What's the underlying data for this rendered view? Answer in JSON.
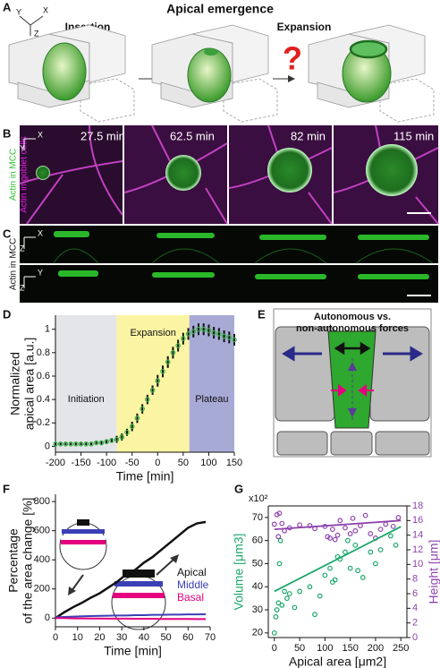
{
  "panel_labels": [
    "A",
    "B",
    "C",
    "D",
    "E",
    "F",
    "G"
  ],
  "panel_a": {
    "title": "Apical emergence",
    "steps": [
      "Insertion",
      "Expansion"
    ],
    "question": "?",
    "axes": [
      "Y",
      "X",
      "Z"
    ]
  },
  "panel_b": {
    "times": [
      "27.5 min",
      "62.5 min",
      "82 min",
      "115 min"
    ],
    "channels": [
      "Actin in MCC",
      "Actin in goblet cells"
    ],
    "axes": [
      "X",
      "Y"
    ]
  },
  "panel_c": {
    "channel": "Actin in MCC",
    "axes_top": [
      "X",
      "Z"
    ],
    "axes_bottom": [
      "Y",
      "Z"
    ]
  },
  "panel_e": {
    "title": [
      "Autonomous vs.",
      "non-autonomous forces"
    ]
  },
  "chart_data": [
    {
      "type": "line",
      "xlabel": "Time [min]",
      "ylabel": [
        "Normalized",
        "apical area [a.u.]"
      ],
      "x": [
        -200,
        -190,
        -180,
        -170,
        -160,
        -150,
        -140,
        -130,
        -120,
        -110,
        -100,
        -90,
        -80,
        -70,
        -60,
        -50,
        -40,
        -30,
        -20,
        -10,
        0,
        10,
        20,
        30,
        40,
        50,
        60,
        70,
        80,
        90,
        100,
        110,
        120,
        130,
        140,
        150
      ],
      "series": [
        {
          "color": "#3cb44b",
          "values": [
            0.02,
            0.02,
            0.02,
            0.02,
            0.02,
            0.02,
            0.02,
            0.02,
            0.03,
            0.03,
            0.04,
            0.05,
            0.06,
            0.08,
            0.12,
            0.17,
            0.24,
            0.32,
            0.4,
            0.48,
            0.56,
            0.64,
            0.72,
            0.8,
            0.86,
            0.92,
            0.96,
            0.98,
            1.0,
            1.0,
            0.99,
            0.97,
            0.96,
            0.94,
            0.93,
            0.91
          ],
          "errors": [
            0.01,
            0.01,
            0.01,
            0.01,
            0.01,
            0.01,
            0.01,
            0.01,
            0.01,
            0.02,
            0.02,
            0.02,
            0.03,
            0.03,
            0.03,
            0.04,
            0.04,
            0.04,
            0.04,
            0.04,
            0.05,
            0.05,
            0.05,
            0.05,
            0.05,
            0.05,
            0.05,
            0.05,
            0.05,
            0.05,
            0.05,
            0.05,
            0.05,
            0.05,
            0.05,
            0.05
          ]
        }
      ],
      "xlim": [
        -200,
        150
      ],
      "ylim": [
        -0.05,
        1.12
      ],
      "xticks": [
        -200,
        -150,
        -100,
        -50,
        0,
        50,
        100,
        150
      ],
      "yticks": [
        0,
        0.2,
        0.4,
        0.6,
        0.8,
        1
      ],
      "regions": [
        {
          "name": "Initiation",
          "from": -200,
          "to": -80,
          "color": "#e4e5e8"
        },
        {
          "name": "Expansion",
          "from": -80,
          "to": 62,
          "color": "#fbf4a2"
        },
        {
          "name": "Plateau",
          "from": 62,
          "to": 150,
          "color": "#a8aad6"
        }
      ]
    },
    {
      "type": "line",
      "xlabel": "Time [min]",
      "ylabel": [
        "Percentage",
        "of the area change [%]"
      ],
      "x": [
        0,
        4,
        8,
        12,
        16,
        20,
        24,
        28,
        32,
        36,
        40,
        44,
        48,
        52,
        56,
        60,
        64,
        68
      ],
      "series": [
        {
          "name": "Apical",
          "color": "#111111",
          "values": [
            0,
            40,
            75,
            105,
            140,
            170,
            210,
            250,
            300,
            330,
            380,
            420,
            470,
            520,
            570,
            620,
            650,
            660
          ]
        },
        {
          "name": "Middle",
          "color": "#3b3fb5",
          "values": [
            5,
            8,
            10,
            12,
            14,
            15,
            16,
            18,
            18,
            20,
            20,
            22,
            22,
            24,
            24,
            25,
            25,
            26
          ]
        },
        {
          "name": "Basal",
          "color": "#e4007f",
          "values": [
            0,
            0,
            -2,
            -2,
            -3,
            -3,
            -4,
            -4,
            -4,
            -5,
            -5,
            -5,
            -6,
            -6,
            -6,
            -6,
            -7,
            -7
          ]
        }
      ],
      "xlim": [
        0,
        70
      ],
      "ylim": [
        -60,
        850
      ],
      "xticks": [
        0,
        10,
        20,
        30,
        40,
        50,
        60,
        70
      ],
      "yticks": [
        0,
        200,
        400,
        600,
        800
      ]
    },
    {
      "type": "scatter",
      "xlabel": "Apical area [μm2]",
      "ylabel": "Volume [μm3]",
      "y2label": "Height [μm]",
      "multiplier": "x10²",
      "xlim": [
        -12,
        262
      ],
      "ylim": [
        18,
        75
      ],
      "y2lim": [
        0,
        18
      ],
      "xticks": [
        0,
        50,
        100,
        150,
        200,
        250
      ],
      "yticks": [
        20,
        30,
        40,
        50,
        60,
        70
      ],
      "y2ticks": [
        0,
        2,
        4,
        6,
        8,
        10,
        12,
        14,
        16,
        18
      ],
      "series": [
        {
          "color": "#1aa86a",
          "x": [
            0,
            3,
            5,
            8,
            10,
            12,
            15,
            20,
            25,
            30,
            40,
            50,
            70,
            80,
            90,
            100,
            110,
            115,
            120,
            125,
            130,
            140,
            145,
            150,
            160,
            165,
            175,
            190,
            200,
            210,
            230,
            240
          ],
          "values": [
            20,
            27,
            30,
            33,
            50,
            60,
            32,
            38,
            35,
            37,
            31,
            38,
            40,
            28,
            36,
            45,
            48,
            42,
            43,
            53,
            52,
            55,
            60,
            48,
            58,
            47,
            44,
            55,
            50,
            56,
            62,
            58
          ]
        },
        {
          "color": "#8e44ad",
          "axis": "y2",
          "x": [
            0,
            5,
            8,
            10,
            15,
            20,
            30,
            50,
            70,
            80,
            100,
            105,
            110,
            115,
            120,
            125,
            130,
            140,
            150,
            155,
            160,
            170,
            180,
            190,
            200,
            210,
            220,
            235,
            245
          ],
          "values": [
            15.5,
            16.8,
            13.8,
            17,
            15.6,
            14.6,
            15,
            15.4,
            15.3,
            14.9,
            15.2,
            13.8,
            13.6,
            14.8,
            13.4,
            14,
            16,
            15,
            14.2,
            16.3,
            14.6,
            15.3,
            16.7,
            14.2,
            13.6,
            14.8,
            15.5,
            15.2,
            16.4
          ]
        },
        {
          "type": "line",
          "color": "#1aa86a",
          "x": [
            0,
            250
          ],
          "values": [
            38,
            66
          ]
        },
        {
          "type": "line",
          "color": "#8e44ad",
          "axis": "y2",
          "x": [
            0,
            250
          ],
          "values": [
            14.8,
            16
          ]
        }
      ]
    }
  ]
}
